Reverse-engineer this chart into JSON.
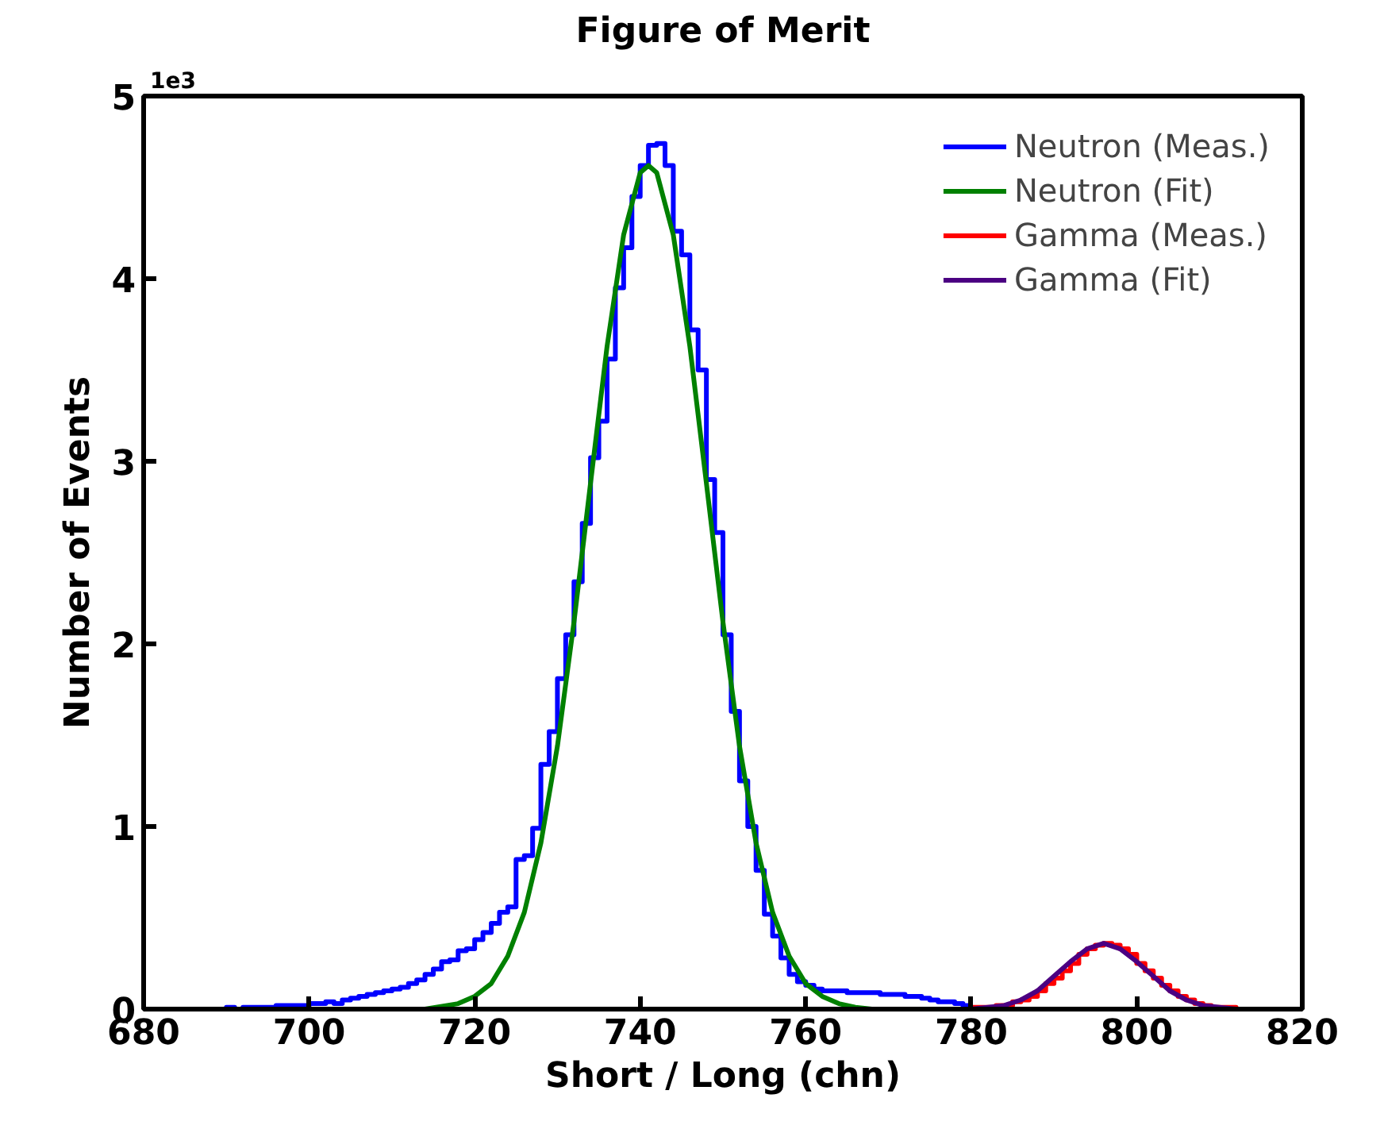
{
  "chart_data": {
    "type": "line",
    "title": "Figure of Merit",
    "xlabel": "Short / Long (chn)",
    "ylabel": "Number of Events",
    "annotations": [
      "1e3"
    ],
    "xlim": [
      680,
      820
    ],
    "xticks": [
      680,
      700,
      720,
      740,
      760,
      780,
      800,
      820
    ],
    "ylim": [
      0,
      5
    ],
    "yticks": [
      0,
      1,
      2,
      3,
      4,
      5
    ],
    "grid": false,
    "legend": "top right",
    "marker": "none",
    "line_style": "solid",
    "series": [
      {
        "name": "Neutron (Meas.)",
        "type": "step",
        "color": "#0000ff",
        "x": [
          688,
          689,
          690,
          691,
          692,
          693,
          694,
          695,
          696,
          697,
          698,
          699,
          700,
          701,
          702,
          703,
          704,
          705,
          706,
          707,
          708,
          709,
          710,
          711,
          712,
          713,
          714,
          715,
          716,
          717,
          718,
          719,
          720,
          721,
          722,
          723,
          724,
          725,
          726,
          727,
          728,
          729,
          730,
          731,
          732,
          733,
          734,
          735,
          736,
          737,
          738,
          739,
          740,
          741,
          742,
          743,
          744,
          745,
          746,
          747,
          748,
          749,
          750,
          751,
          752,
          753,
          754,
          755,
          756,
          757,
          758,
          759,
          760,
          761,
          762,
          763,
          764,
          765,
          766,
          767,
          768,
          769,
          770,
          771,
          772,
          773,
          774,
          775,
          776,
          777,
          778,
          779,
          780
        ],
        "values": [
          0,
          0,
          0.01,
          0,
          0.01,
          0.01,
          0.01,
          0.01,
          0.02,
          0.02,
          0.02,
          0.02,
          0.03,
          0.03,
          0.04,
          0.03,
          0.05,
          0.06,
          0.07,
          0.08,
          0.09,
          0.1,
          0.11,
          0.12,
          0.14,
          0.16,
          0.19,
          0.22,
          0.26,
          0.27,
          0.32,
          0.33,
          0.38,
          0.42,
          0.47,
          0.53,
          0.56,
          0.82,
          0.84,
          0.99,
          1.34,
          1.52,
          1.81,
          2.05,
          2.34,
          2.66,
          3.02,
          3.22,
          3.56,
          3.95,
          4.17,
          4.45,
          4.62,
          4.73,
          4.74,
          4.62,
          4.26,
          4.13,
          3.72,
          3.5,
          2.9,
          2.61,
          2.05,
          1.63,
          1.25,
          1.0,
          0.76,
          0.52,
          0.4,
          0.28,
          0.19,
          0.15,
          0.13,
          0.11,
          0.1,
          0.1,
          0.1,
          0.09,
          0.09,
          0.09,
          0.09,
          0.08,
          0.08,
          0.08,
          0.07,
          0.07,
          0.06,
          0.05,
          0.04,
          0.04,
          0.03,
          0.02,
          0.02
        ]
      },
      {
        "name": "Neutron (Fit)",
        "color": "#008000",
        "x": [
          680,
          710,
          714,
          718,
          720,
          722,
          724,
          726,
          728,
          730,
          732,
          734,
          736,
          738,
          740,
          741,
          742,
          744,
          746,
          748,
          750,
          752,
          754,
          756,
          758,
          760,
          762,
          764,
          766,
          768,
          772,
          780
        ],
        "values": [
          0,
          0,
          0,
          0.03,
          0.07,
          0.14,
          0.29,
          0.53,
          0.91,
          1.44,
          2.12,
          2.88,
          3.63,
          4.24,
          4.58,
          4.62,
          4.58,
          4.24,
          3.63,
          2.88,
          2.12,
          1.44,
          0.91,
          0.53,
          0.29,
          0.14,
          0.07,
          0.03,
          0.01,
          0,
          0,
          0
        ]
      },
      {
        "name": "Gamma (Meas.)",
        "type": "step",
        "color": "#ff0000",
        "x": [
          780,
          781,
          782,
          783,
          784,
          785,
          786,
          787,
          788,
          789,
          790,
          791,
          792,
          793,
          794,
          795,
          796,
          797,
          798,
          799,
          800,
          801,
          802,
          803,
          804,
          805,
          806,
          807,
          808,
          809,
          810,
          811,
          812,
          813,
          814,
          815
        ],
        "values": [
          0.01,
          0.01,
          0.01,
          0.02,
          0.02,
          0.04,
          0.05,
          0.07,
          0.1,
          0.14,
          0.17,
          0.21,
          0.25,
          0.3,
          0.33,
          0.35,
          0.36,
          0.35,
          0.33,
          0.3,
          0.25,
          0.21,
          0.17,
          0.13,
          0.1,
          0.07,
          0.05,
          0.03,
          0.02,
          0.01,
          0.01,
          0.01,
          0,
          0,
          0,
          0
        ]
      },
      {
        "name": "Gamma (Fit)",
        "color": "#4b0082",
        "x": [
          780,
          782,
          784,
          786,
          788,
          790,
          792,
          794,
          796,
          798,
          800,
          802,
          804,
          806,
          808,
          810,
          812,
          816,
          820
        ],
        "values": [
          0,
          0.01,
          0.02,
          0.05,
          0.1,
          0.18,
          0.26,
          0.33,
          0.36,
          0.33,
          0.26,
          0.18,
          0.1,
          0.05,
          0.02,
          0.01,
          0,
          0,
          0
        ]
      }
    ]
  }
}
